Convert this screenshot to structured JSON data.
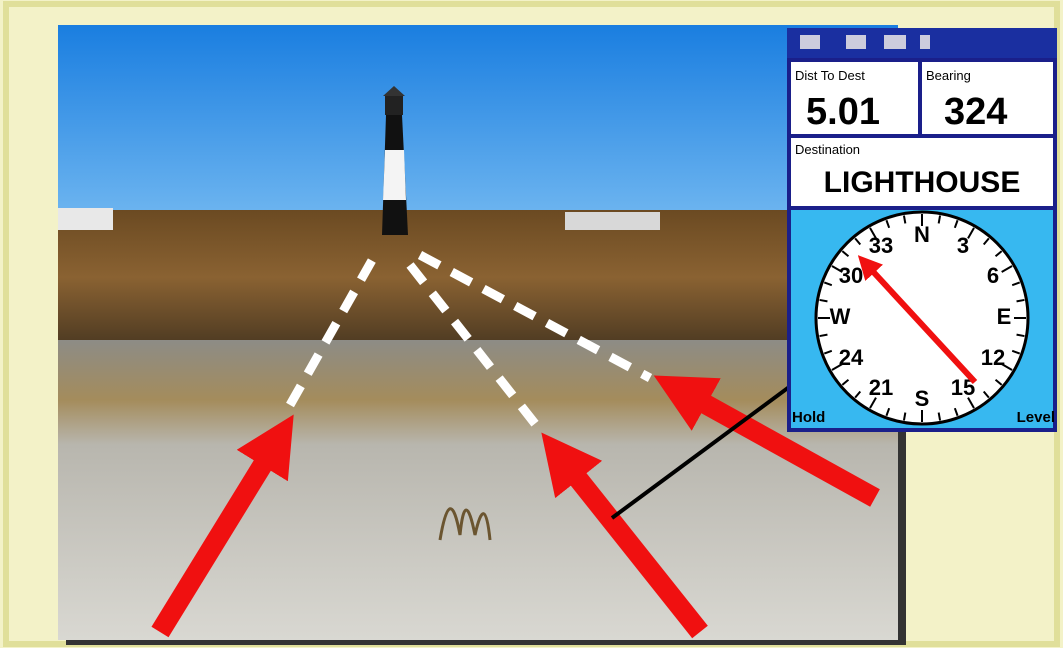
{
  "gps": {
    "distance_label": "Dist To Dest",
    "distance_value": "5.01",
    "bearing_label": "Bearing",
    "bearing_value": "324",
    "destination_label": "Destination",
    "destination_value": "LIGHTHOUSE",
    "compass_labels": [
      "N",
      "3",
      "6",
      "E",
      "12",
      "15",
      "S",
      "21",
      "24",
      "W",
      "30",
      "33"
    ],
    "left_softkey": "Hold",
    "right_softkey": "Level"
  }
}
